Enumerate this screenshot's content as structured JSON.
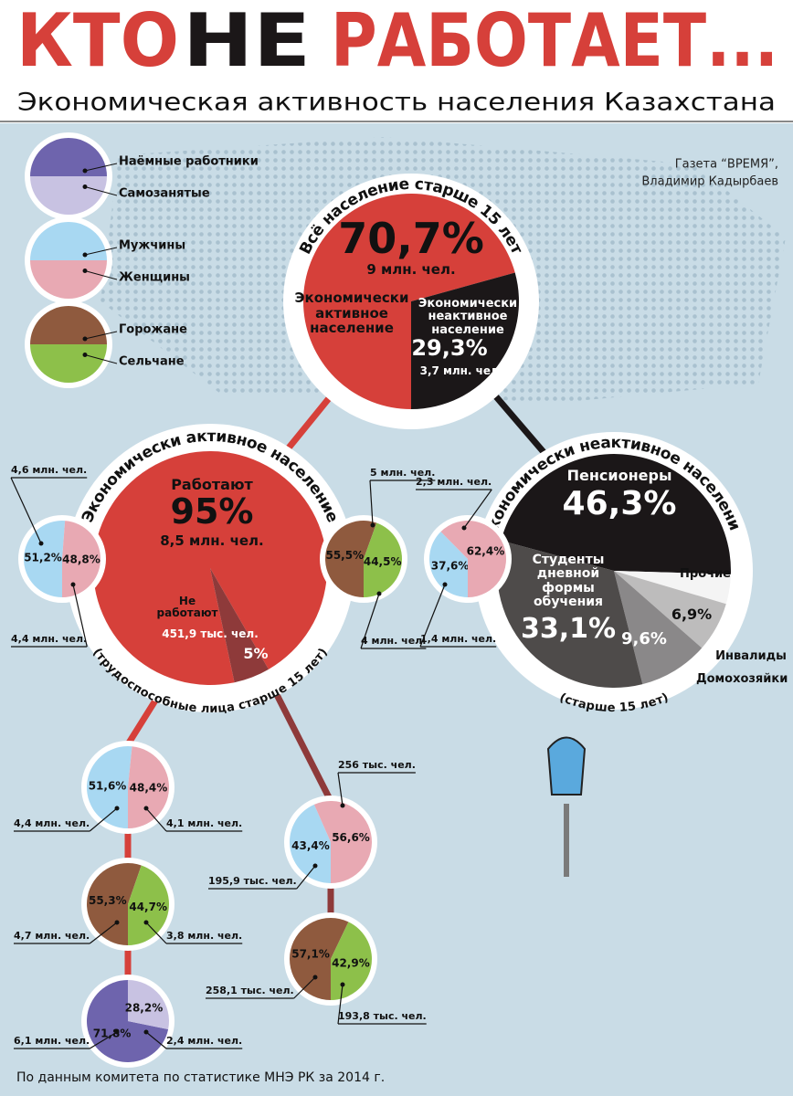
{
  "header": {
    "title": [
      "КТО",
      "НЕ",
      "РАБОТАЕТ..."
    ],
    "subtitle": "Экономическая активность населения Казахстана"
  },
  "credit": [
    "Газета “ВРЕМЯ”,",
    "Владимир Кадырбаев"
  ],
  "legend": [
    {
      "top": {
        "label": "Наёмные работники",
        "color": "#6e64ad"
      },
      "bottom": {
        "label": "Самозанятые",
        "color": "#c8c2e2"
      }
    },
    {
      "top": {
        "label": "Мужчины",
        "color": "#a8d8f2"
      },
      "bottom": {
        "label": "Женщины",
        "color": "#e8a9b3"
      }
    },
    {
      "top": {
        "label": "Горожане",
        "color": "#8f5a3e"
      },
      "bottom": {
        "label": "Сельчане",
        "color": "#8dc04a"
      }
    }
  ],
  "pies": [
    {
      "title": "Всё население старше 15 лет",
      "slices": [
        {
          "value": 70.7,
          "value_label": "70,7%",
          "note": "9 млн. чел.",
          "label": "Экономически активное население",
          "color": "#d6403a"
        },
        {
          "value": 29.3,
          "value_label": "29,3%",
          "note": "3,7 млн. чел.",
          "label": "Экономически неактивное население",
          "color": "#1b1718"
        }
      ]
    },
    {
      "title": "Экономически активное население",
      "footer": "(трудоспособные лица старше 15 лет)",
      "slices": [
        {
          "value": 95,
          "value_label": "95%",
          "note": "8,5 млн. чел.",
          "label": "Работают",
          "color": "#d6403a"
        },
        {
          "value": 5,
          "value_label": "5%",
          "note": "451,9 тыс. чел.",
          "label": "Не работают",
          "color": "#8e3a3a"
        }
      ]
    },
    {
      "title": "Экономически неактивное население",
      "footer": "(старше 15 лет)",
      "slices": [
        {
          "value": 46.3,
          "value_label": "46,3%",
          "label": "Пенсионеры",
          "color": "#1b1718"
        },
        {
          "value": 4.1,
          "label": "Прочие",
          "color": "#f4f4f4"
        },
        {
          "value": 6.9,
          "value_label": "6,9%",
          "label": "Инвалиды",
          "color": "#bdbcbc"
        },
        {
          "value": 9.6,
          "value_label": "9,6%",
          "label": "Домохозяйки",
          "color": "#8a8889"
        },
        {
          "value": 33.1,
          "value_label": "33,1%",
          "label": "Студенты дневной формы обучения",
          "color": "#4e4b4a"
        }
      ]
    },
    {
      "slices": [
        {
          "value": 51.2,
          "value_label": "51,2%",
          "note": "4,6 млн. чел.",
          "color": "#a8d8f2"
        },
        {
          "value": 48.8,
          "value_label": "48,8%",
          "note": "4,4 млн. чел.",
          "color": "#e8a9b3"
        }
      ]
    },
    {
      "slices": [
        {
          "value": 55.5,
          "value_label": "55,5%",
          "note": "5 млн. чел.",
          "color": "#8f5a3e"
        },
        {
          "value": 44.5,
          "value_label": "44,5%",
          "note": "4 млн. чел.",
          "color": "#8dc04a"
        }
      ]
    },
    {
      "slices": [
        {
          "value": 37.6,
          "value_label": "37,6%",
          "note": "1,4 млн. чел.",
          "color": "#a8d8f2"
        },
        {
          "value": 62.4,
          "value_label": "62,4%",
          "note": "2,3 млн. чел.",
          "color": "#e8a9b3"
        }
      ]
    },
    {
      "slices": [
        {
          "value": 51.6,
          "value_label": "51,6%",
          "note": "4,4 млн. чел.",
          "color": "#a8d8f2"
        },
        {
          "value": 48.4,
          "value_label": "48,4%",
          "note": "4,1 млн. чел.",
          "color": "#e8a9b3"
        }
      ]
    },
    {
      "slices": [
        {
          "value": 55.3,
          "value_label": "55,3%",
          "note": "4,7 млн. чел.",
          "color": "#8f5a3e"
        },
        {
          "value": 44.7,
          "value_label": "44,7%",
          "note": "3,8 млн. чел.",
          "color": "#8dc04a"
        }
      ]
    },
    {
      "slices": [
        {
          "value": 71.8,
          "value_label": "71,8%",
          "note": "6,1 млн. чел.",
          "color": "#6e64ad"
        },
        {
          "value": 28.2,
          "value_label": "28,2%",
          "note": "2,4 млн. чел.",
          "color": "#c8c2e2"
        }
      ]
    },
    {
      "slices": [
        {
          "value": 43.4,
          "value_label": "43,4%",
          "note": "195,9 тыс. чел.",
          "color": "#a8d8f2"
        },
        {
          "value": 56.6,
          "value_label": "56,6%",
          "note": "256 тыс. чел.",
          "color": "#e8a9b3"
        }
      ]
    },
    {
      "slices": [
        {
          "value": 57.1,
          "value_label": "57,1%",
          "note": "258,1 тыс. чел.",
          "color": "#8f5a3e"
        },
        {
          "value": 42.9,
          "value_label": "42,9%",
          "note": "193,8 тыс. чел.",
          "color": "#8dc04a"
        }
      ]
    }
  ],
  "source": "По данным комитета по статистике МНЭ РК за 2014 г."
}
